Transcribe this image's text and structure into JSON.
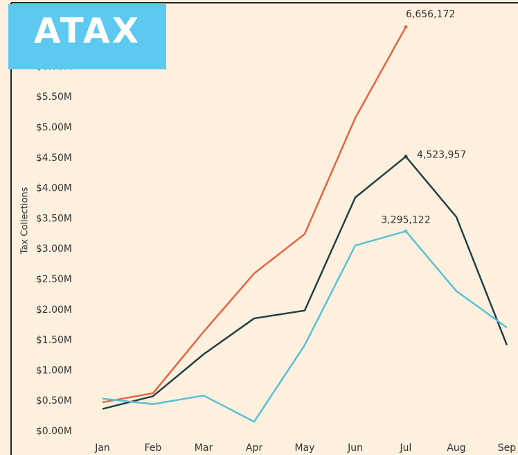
{
  "logo": "ATAX",
  "chart_data": {
    "type": "line",
    "ylabel": "Tax Collections",
    "categories": [
      "Jan",
      "Feb",
      "Mar",
      "Apr",
      "May",
      "Jun",
      "Jul",
      "Aug",
      "Sep"
    ],
    "series": [
      {
        "color": "#e8633f",
        "values": [
          480000,
          630000,
          1640000,
          2600000,
          3250000,
          5160000,
          6656172,
          null,
          null
        ],
        "value_labels": [
          null,
          null,
          null,
          null,
          null,
          null,
          "6,656,172",
          null,
          null
        ]
      },
      {
        "color": "#233f45",
        "values": [
          370000,
          580000,
          1270000,
          1860000,
          1990000,
          3850000,
          4523957,
          3530000,
          1420000
        ],
        "value_labels": [
          null,
          null,
          null,
          null,
          null,
          null,
          "4,523,957",
          null,
          null
        ]
      },
      {
        "color": "#5bbfd6",
        "values": [
          540000,
          450000,
          590000,
          160000,
          1420000,
          3060000,
          3295122,
          2310000,
          1710000
        ],
        "value_labels": [
          null,
          null,
          null,
          null,
          null,
          null,
          "3,295,122",
          null,
          null
        ]
      }
    ],
    "ylim": [
      0,
      6000000
    ],
    "yticks": [
      {
        "value": 0,
        "label": "$0.00M"
      },
      {
        "value": 500000,
        "label": "$0.50M"
      },
      {
        "value": 1000000,
        "label": "$1.00M"
      },
      {
        "value": 1500000,
        "label": "$1.50M"
      },
      {
        "value": 2000000,
        "label": "$2.00M"
      },
      {
        "value": 2500000,
        "label": "$2.50M"
      },
      {
        "value": 3000000,
        "label": "$3.00M"
      },
      {
        "value": 3500000,
        "label": "$3.50M"
      },
      {
        "value": 4000000,
        "label": "$4.00M"
      },
      {
        "value": 4500000,
        "label": "$4.50M"
      },
      {
        "value": 5000000,
        "label": "$5.00M"
      },
      {
        "value": 5500000,
        "label": "$5.50M"
      },
      {
        "value": 6000000,
        "label": "$6.00M"
      }
    ],
    "grid": false
  }
}
